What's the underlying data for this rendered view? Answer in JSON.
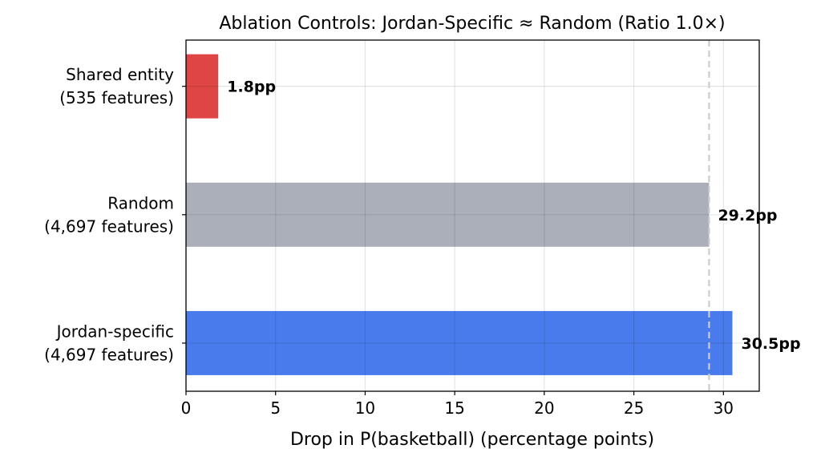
{
  "chart_data": {
    "type": "bar",
    "orientation": "horizontal",
    "title": "Ablation Controls: Jordan-Specific ≈ Random (Ratio 1.0×)",
    "xlabel": "Drop in P(basketball) (percentage points)",
    "ylabel": "",
    "categories": [
      "Jordan-specific\n(4,697 features)",
      "Random\n(4,697 features)",
      "Shared entity\n(535 features)"
    ],
    "values": [
      30.5,
      29.2,
      1.8
    ],
    "data_labels": [
      "30.5pp",
      "29.2pp",
      "1.8pp"
    ],
    "colors": [
      "#4a7bed",
      "#abafba",
      "#e04545"
    ],
    "xlim": [
      0,
      32
    ],
    "xticks": [
      0,
      5,
      10,
      15,
      20,
      25,
      30
    ],
    "reference_line": {
      "x": 29.2,
      "style": "dashed",
      "color": "#cccccc"
    },
    "grid": true
  }
}
